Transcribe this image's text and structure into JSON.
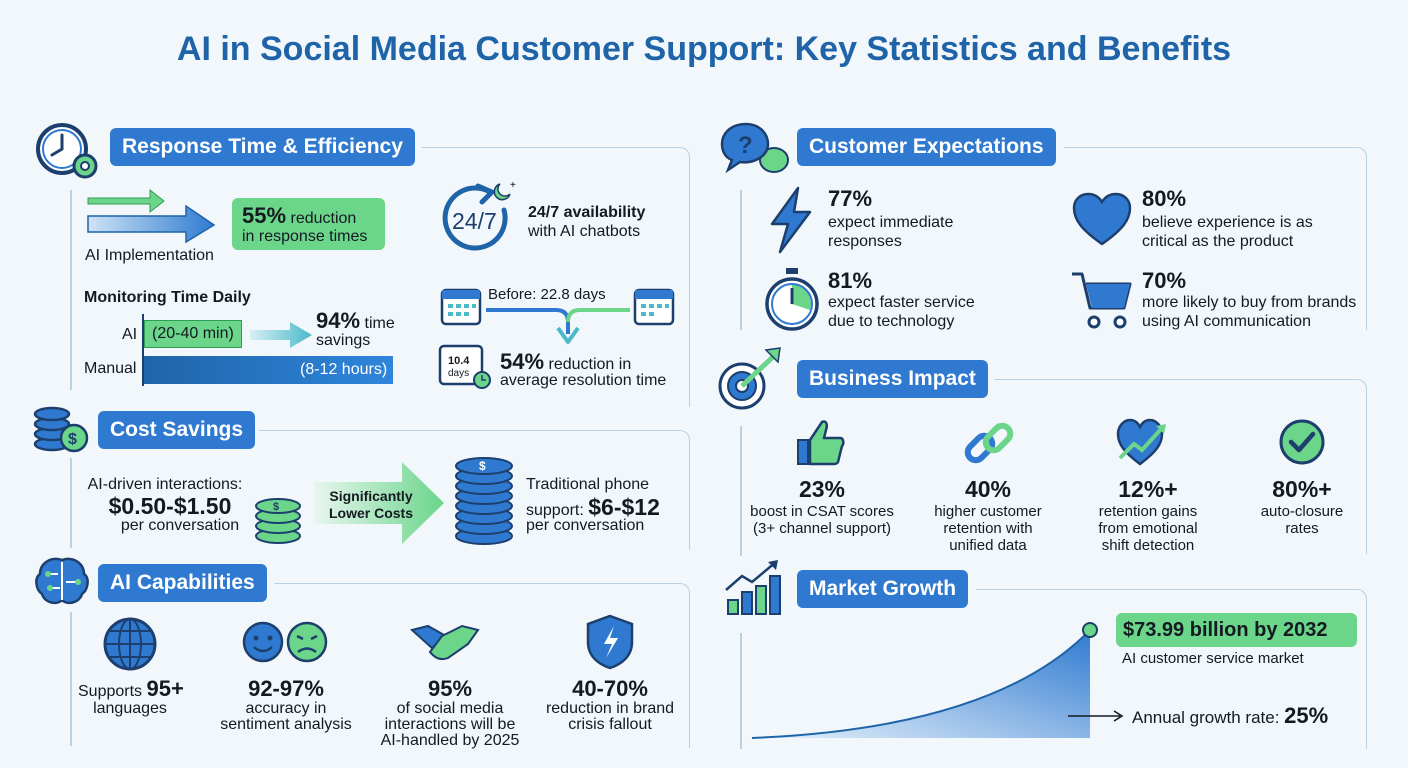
{
  "title": "AI in Social Media Customer Support: Key Statistics and Benefits",
  "colors": {
    "blue": "#2f7ad0",
    "dark_blue": "#1f64a8",
    "green": "#6bd58a",
    "navy": "#1c3f6e"
  },
  "response": {
    "heading": "Response Time & Efficiency",
    "reduction_big": "55%",
    "reduction_text": " reduction",
    "reduction_line2": "in response times",
    "ai_impl": "AI Implementation",
    "availability_icon_text": "24/7",
    "availability_line1": "24/7 availability",
    "availability_line2": "with AI chatbots",
    "monitoring_title": "Monitoring Time Daily",
    "ai_label": "AI",
    "ai_bar": "(20-40 min)",
    "manual_label": "Manual",
    "manual_bar": "(8-12 hours)",
    "savings_big": "94%",
    "savings_text": " time",
    "savings_line2": "savings",
    "before": "Before: 22.8 days",
    "after_top": "10.4",
    "after_bottom": "days",
    "resolution_big": "54%",
    "resolution_text": " reduction in",
    "resolution_line2": "average resolution time"
  },
  "cost": {
    "heading": "Cost Savings",
    "ai_line1": "AI-driven interactions:",
    "ai_price": "$0.50-$1.50",
    "ai_line3": "per conversation",
    "arrow_line1": "Significantly",
    "arrow_line2": "Lower Costs",
    "phone_line1": "Traditional phone",
    "phone_prefix": "support: ",
    "phone_price": "$6-$12",
    "phone_line3": "per conversation"
  },
  "capabilities": {
    "heading": "AI Capabilities",
    "items": [
      {
        "prefix": "Supports ",
        "big": "95+",
        "line2": "languages",
        "line3": ""
      },
      {
        "prefix": "",
        "big": "92-97%",
        "line2": "accuracy in",
        "line3": "sentiment analysis"
      },
      {
        "prefix": "",
        "big": "95%",
        "line2": "of social media",
        "line3": "interactions will be",
        "line4": "AI-handled by 2025"
      },
      {
        "prefix": "",
        "big": "40-70%",
        "line2": "reduction in brand",
        "line3": "crisis fallout"
      }
    ]
  },
  "expectations": {
    "heading": "Customer Expectations",
    "items": [
      {
        "big": "77%",
        "line1": "expect immediate",
        "line2": "responses",
        "icon": "lightning-icon"
      },
      {
        "big": "80%",
        "line1": "believe experience is as",
        "line2": "critical as the product",
        "icon": "heart-icon"
      },
      {
        "big": "81%",
        "line1": "expect faster service",
        "line2": "due to technology",
        "icon": "stopwatch-icon"
      },
      {
        "big": "70%",
        "line1": "more likely to buy from brands",
        "line2": "using AI communication",
        "icon": "cart-icon"
      }
    ]
  },
  "business": {
    "heading": "Business Impact",
    "items": [
      {
        "big": "23%",
        "line1": "boost in CSAT scores",
        "line2": "(3+ channel support)",
        "icon": "thumbs-up-icon"
      },
      {
        "big": "40%",
        "line1": "higher customer",
        "line2": "retention with",
        "line3": "unified data",
        "icon": "link-icon"
      },
      {
        "big": "12%+",
        "line1": "retention gains",
        "line2": "from emotional",
        "line3": "shift detection",
        "icon": "heart-trend-icon"
      },
      {
        "big": "80%+",
        "line1": "auto-closure",
        "line2": "rates",
        "icon": "check-icon"
      }
    ]
  },
  "market": {
    "heading": "Market Growth",
    "value": "$73.99 billion by 2032",
    "value_label": "AI customer service market",
    "growth_label": "Annual growth rate: ",
    "growth_value": "25%"
  }
}
